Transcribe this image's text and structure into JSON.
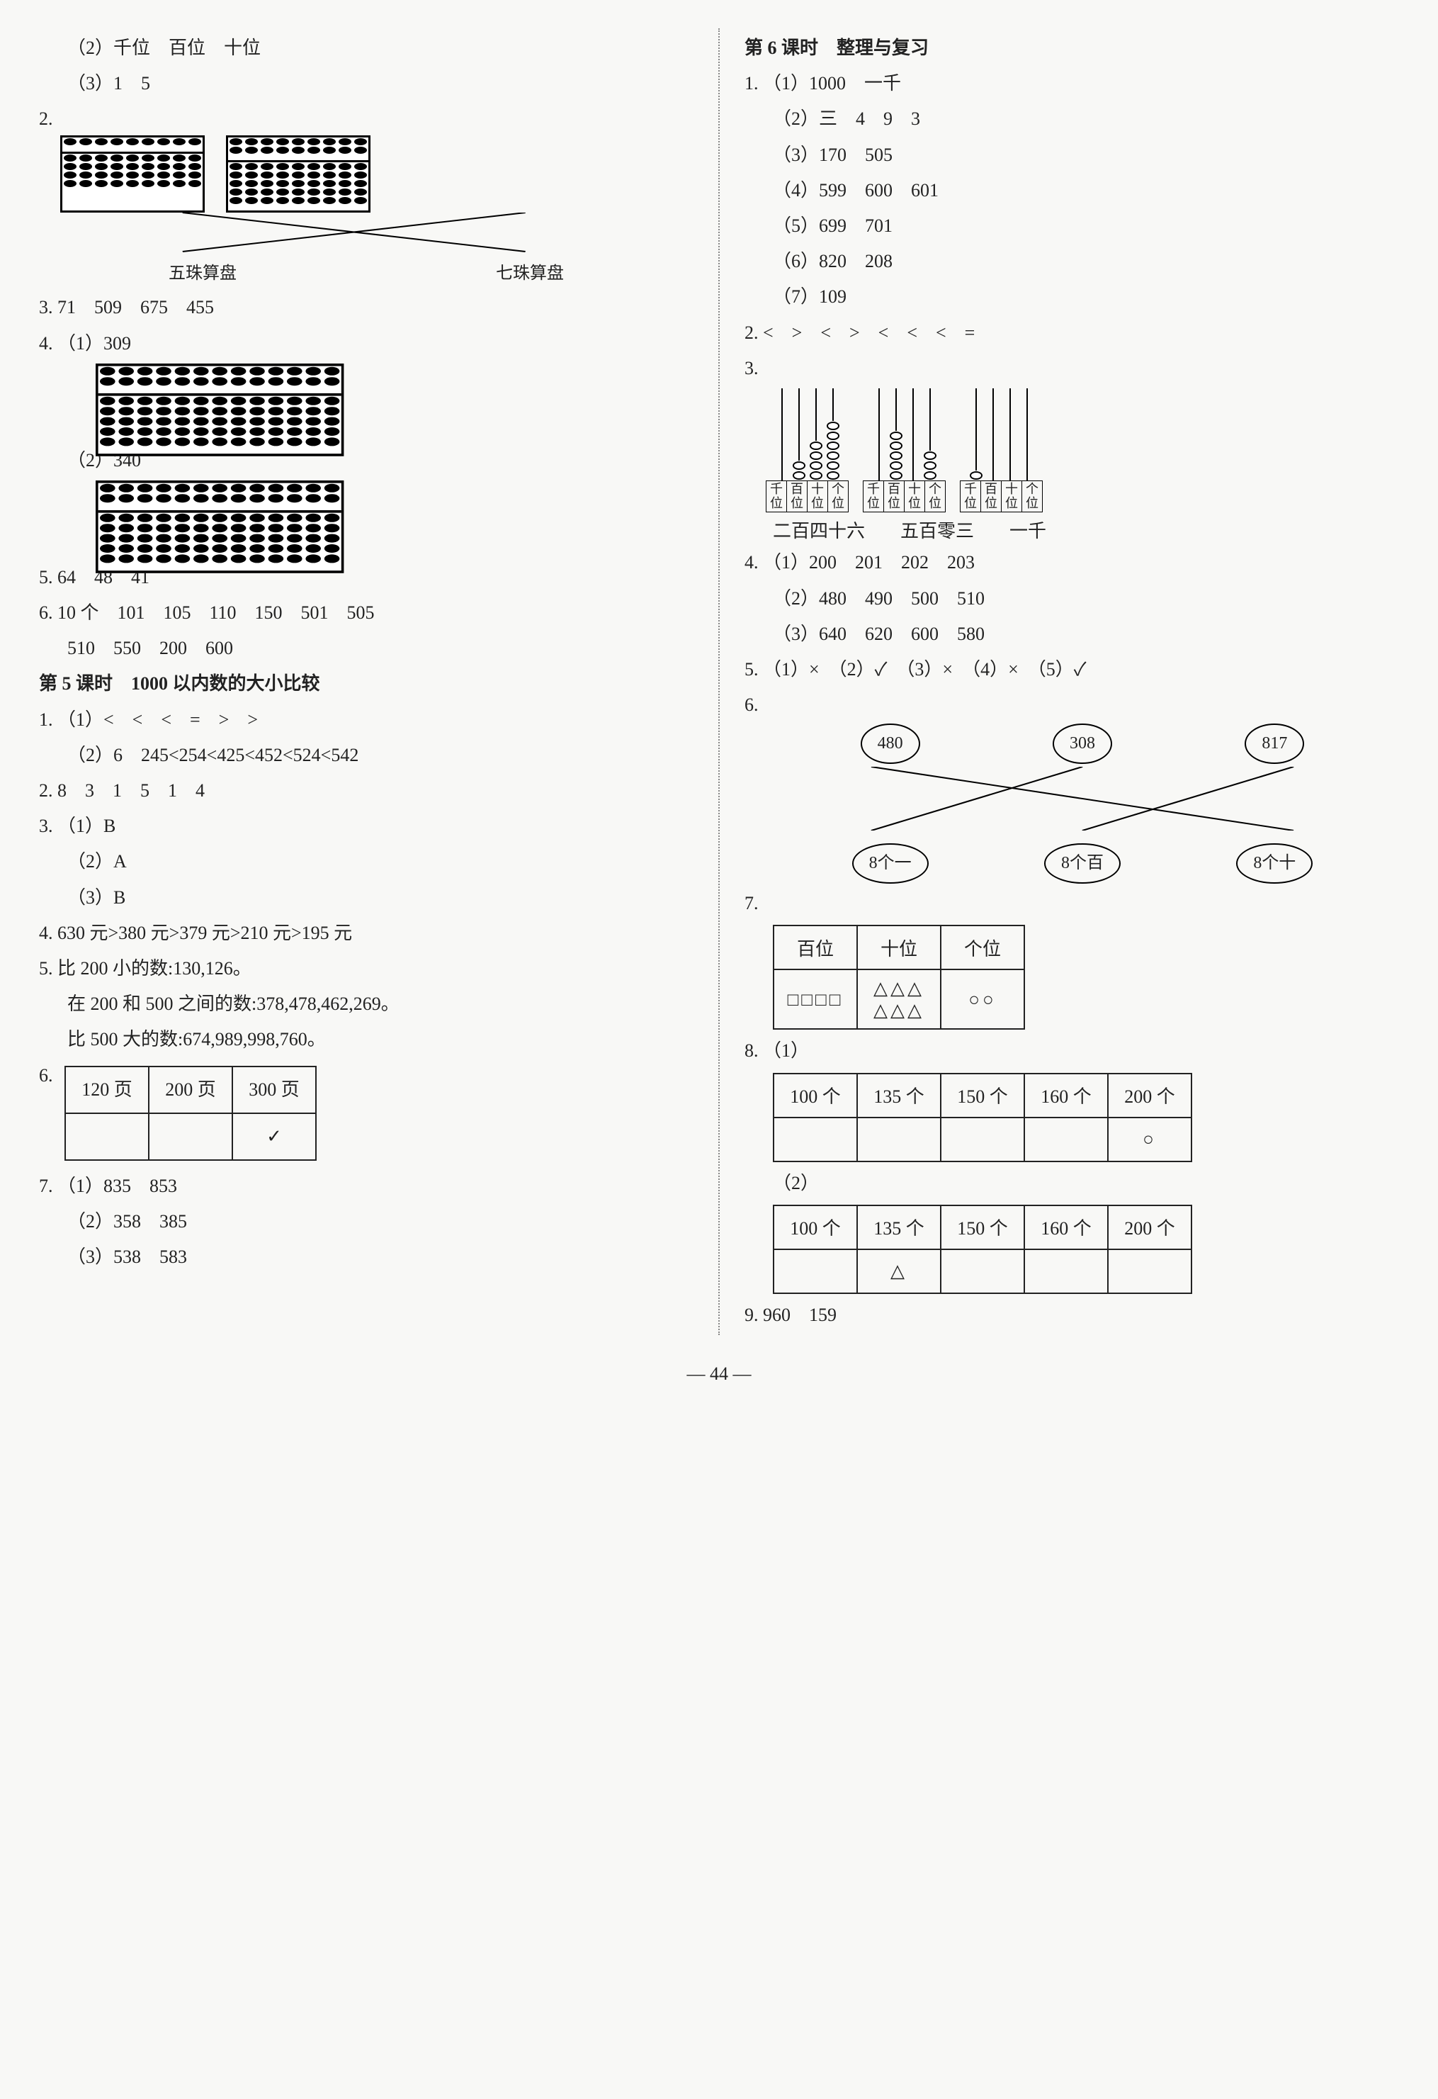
{
  "left": {
    "l1": "（2）千位　百位　十位",
    "l2": "（3）1　5",
    "q2_num": "2.",
    "abacus_left_label": "五珠算盘",
    "abacus_right_label": "七珠算盘",
    "l3": "3. 71　509　675　455",
    "l4": "4. （1）309",
    "l5": "（2）340",
    "l6": "5. 64　48　41",
    "l7": "6. 10 个　101　105　110　150　501　505",
    "l7b": "510　550　200　600",
    "h5": "第 5 课时　1000 以内数的大小比较",
    "p5_1_1": "1. （1）<　<　<　=　>　>",
    "p5_1_2": "（2）6　245<254<425<452<524<542",
    "p5_2": "2. 8　3　1　5　1　4",
    "p5_3_1": "3. （1）B",
    "p5_3_2": "（2）A",
    "p5_3_3": "（3）B",
    "p5_4": "4. 630 元>380 元>379 元>210 元>195 元",
    "p5_5_1": "5. 比 200 小的数:130,126。",
    "p5_5_2": "在 200 和 500 之间的数:378,478,462,269。",
    "p5_5_3": "比 500 大的数:674,989,998,760。",
    "p5_6_num": "6.",
    "p5_6_h1": "120 页",
    "p5_6_h2": "200 页",
    "p5_6_h3": "300 页",
    "p5_6_check": "✓",
    "p5_7_1": "7. （1）835　853",
    "p5_7_2": "（2）358　385",
    "p5_7_3": "（3）538　583"
  },
  "right": {
    "h6": "第 6 课时　整理与复习",
    "r1_1": "1. （1）1000　一千",
    "r1_2": "（2）三　4　9　3",
    "r1_3": "（3）170　505",
    "r1_4": "（4）599　600　601",
    "r1_5": "（5）699　701",
    "r1_6": "（6）820　208",
    "r1_7": "（7）109",
    "r2": "2. <　>　<　>　<　<　<　=",
    "r3_num": "3.",
    "pv_labels": [
      "千位",
      "百位",
      "十位",
      "个位"
    ],
    "pv_text1": "二百四十六",
    "pv_text2": "五百零三",
    "pv_text3": "一千",
    "r4_1": "4. （1）200　201　202　203",
    "r4_2": "（2）480　490　500　510",
    "r4_3": "（3）640　620　600　580",
    "r5": "5. （1）×　（2）✓　（3）×　（4）×　（5）✓",
    "r6_num": "6.",
    "r6_top": [
      "480",
      "308",
      "817"
    ],
    "r6_bot": [
      "8个一",
      "8个百",
      "8个十"
    ],
    "r7_num": "7.",
    "r7_h": [
      "百位",
      "十位",
      "个位"
    ],
    "r7_c1": "□□□□",
    "r7_c2a": "△△△",
    "r7_c2b": "△△△",
    "r7_c3": "○○",
    "r8_1": "8. （1）",
    "r8_h": [
      "100 个",
      "135 个",
      "150 个",
      "160 个",
      "200 个"
    ],
    "r8_1_mark": "○",
    "r8_2": "（2）",
    "r8_2_mark": "△",
    "r9": "9. 960　159"
  },
  "footer": "— 44 —",
  "abacus": {
    "small5_rods": 9,
    "small7_rods": 9,
    "big_rods": 13
  },
  "pv_rings": [
    [
      0,
      2,
      4,
      6
    ],
    [
      0,
      5,
      0,
      3
    ],
    [
      1,
      0,
      0,
      0
    ]
  ]
}
